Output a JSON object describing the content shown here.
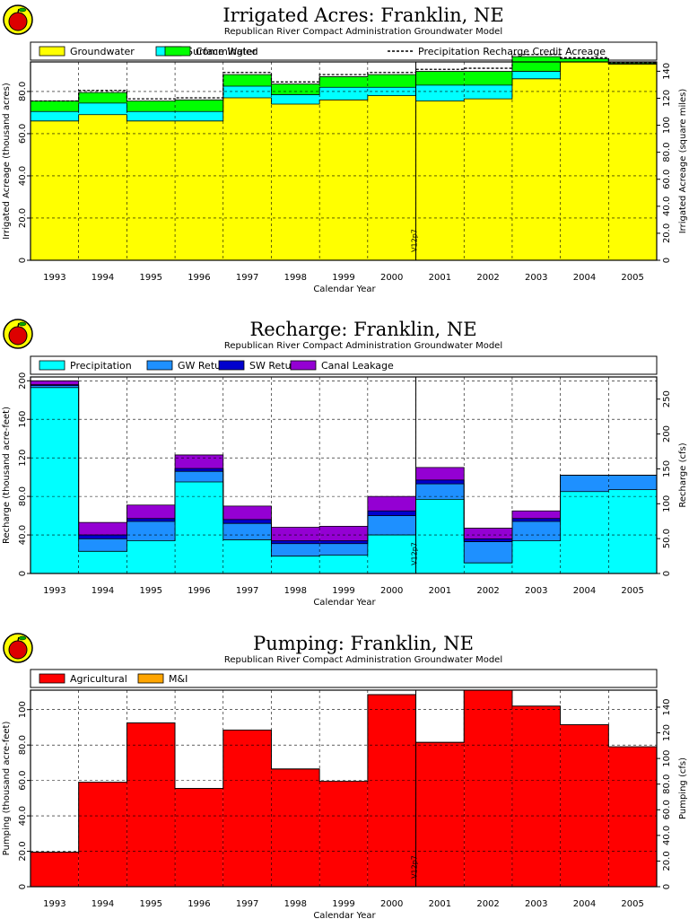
{
  "chart_data": [
    {
      "type": "area",
      "title": "Irrigated Acres: Franklin, NE",
      "subtitle": "Republican River Compact Administration Groundwater Model",
      "xlabel": "Calendar Year",
      "ylabel": "Irrigated Acreage (thousand acres)",
      "ylabel_right": "Irrigated Acreage (square miles)",
      "categories": [
        "1993",
        "1994",
        "1995",
        "1996",
        "1997",
        "1998",
        "1999",
        "2000",
        "2001",
        "2002",
        "2003",
        "2004",
        "2005"
      ],
      "ylim": [
        0,
        94
      ],
      "yticks": [
        0,
        20,
        40,
        60,
        80
      ],
      "ytick_labels": [
        "0",
        "20.0",
        "40.0",
        "60.0",
        "80.0"
      ],
      "ylim_right": [
        0,
        146.9
      ],
      "yticks_right": [
        0,
        20,
        40,
        60,
        80,
        100,
        120,
        140
      ],
      "ytick_labels_right": [
        "0",
        "20.0",
        "40.0",
        "60.0",
        "80.0",
        "100",
        "120",
        "140"
      ],
      "stacked": true,
      "series": [
        {
          "name": "Groundwater",
          "color": "#ffff00",
          "values": [
            66,
            69,
            66,
            66,
            77,
            74,
            76,
            78,
            75.5,
            76.5,
            86,
            94,
            93
          ]
        },
        {
          "name": "Surface Water",
          "color": "#00ffff",
          "values": [
            4.5,
            5.5,
            4.5,
            4.5,
            5.5,
            4.5,
            6,
            4,
            7.5,
            6.5,
            3.5,
            0,
            0
          ]
        },
        {
          "name": "Commingled",
          "color": "#00ff00",
          "values": [
            5,
            5,
            5,
            5.5,
            5.5,
            5,
            5,
            6,
            6.5,
            6.5,
            7,
            1.5,
            0.5
          ]
        }
      ],
      "lines": [
        {
          "name": "Precipitation Recharge Credit Acreage",
          "style": "dashed",
          "color": "#000000",
          "values": [
            75.5,
            80.5,
            76.5,
            77,
            89,
            84.5,
            88,
            89,
            90.5,
            91,
            97.5,
            96,
            93.5
          ]
        }
      ],
      "annotations": [
        "V12p7"
      ],
      "marker_year": "2001",
      "grid": true,
      "legend_position": "top"
    },
    {
      "type": "area",
      "title": "Recharge: Franklin, NE",
      "subtitle": "Republican River Compact Administration Groundwater Model",
      "xlabel": "Calendar Year",
      "ylabel": "Recharge (thousand acre-feet)",
      "ylabel_right": "Recharge (cfs)",
      "categories": [
        "1993",
        "1994",
        "1995",
        "1996",
        "1997",
        "1998",
        "1999",
        "2000",
        "2001",
        "2002",
        "2003",
        "2004",
        "2005"
      ],
      "ylim": [
        0,
        204
      ],
      "yticks": [
        0,
        40,
        80,
        120,
        160,
        200
      ],
      "ytick_labels": [
        "0",
        "40.0",
        "80.0",
        "120",
        "160",
        "200"
      ],
      "ylim_right": [
        0,
        281.8
      ],
      "yticks_right": [
        0,
        50,
        100,
        150,
        200,
        250
      ],
      "ytick_labels_right": [
        "0",
        "50.0",
        "100",
        "150",
        "200",
        "250"
      ],
      "stacked": true,
      "series": [
        {
          "name": "Precipitation",
          "color": "#00ffff",
          "values": [
            193,
            23,
            34,
            95,
            35,
            18,
            19,
            40,
            77,
            11,
            34,
            85,
            87
          ]
        },
        {
          "name": "GW Returns",
          "color": "#1e90ff",
          "values": [
            2,
            13,
            20,
            11,
            17,
            13,
            12,
            20,
            16,
            22,
            20,
            17,
            15
          ]
        },
        {
          "name": "SW Returns",
          "color": "#0000cd",
          "values": [
            1,
            4,
            3,
            3,
            4,
            3,
            3,
            5,
            4,
            3,
            3,
            0,
            0
          ]
        },
        {
          "name": "Canal Leakage",
          "color": "#9400d3",
          "values": [
            4,
            13,
            14,
            14,
            14,
            14,
            15,
            15,
            13,
            11,
            8,
            0,
            0
          ]
        }
      ],
      "annotations": [
        "V12p7"
      ],
      "marker_year": "2001",
      "grid": true,
      "legend_position": "top"
    },
    {
      "type": "area",
      "title": "Pumping: Franklin, NE",
      "subtitle": "Republican River Compact Administration Groundwater Model",
      "xlabel": "Calendar Year",
      "ylabel": "Pumping (thousand acre-feet)",
      "ylabel_right": "Pumping (cfs)",
      "categories": [
        "1993",
        "1994",
        "1995",
        "1996",
        "1997",
        "1998",
        "1999",
        "2000",
        "2001",
        "2002",
        "2003",
        "2004",
        "2005"
      ],
      "ylim": [
        0,
        111
      ],
      "yticks": [
        0,
        20,
        40,
        60,
        80,
        100
      ],
      "ytick_labels": [
        "0",
        "20.0",
        "40.0",
        "60.0",
        "80.0",
        "100"
      ],
      "ylim_right": [
        0,
        153.3
      ],
      "yticks_right": [
        0,
        20,
        40,
        60,
        80,
        100,
        120,
        140
      ],
      "ytick_labels_right": [
        "0",
        "20.0",
        "40.0",
        "60.0",
        "80.0",
        "100",
        "120",
        "140"
      ],
      "stacked": true,
      "series": [
        {
          "name": "Agricultural",
          "color": "#ff0000",
          "values": [
            19.5,
            59,
            92.5,
            55.5,
            88.5,
            66.5,
            59.5,
            108.5,
            81.5,
            111,
            102,
            91.5,
            79
          ]
        },
        {
          "name": "M&I",
          "color": "#ffa500",
          "values": [
            0,
            0,
            0,
            0,
            0,
            0,
            0,
            0,
            0,
            0,
            0,
            0,
            0
          ]
        }
      ],
      "annotations": [
        "V12p7"
      ],
      "marker_year": "2001",
      "grid": true,
      "legend_position": "top"
    }
  ]
}
